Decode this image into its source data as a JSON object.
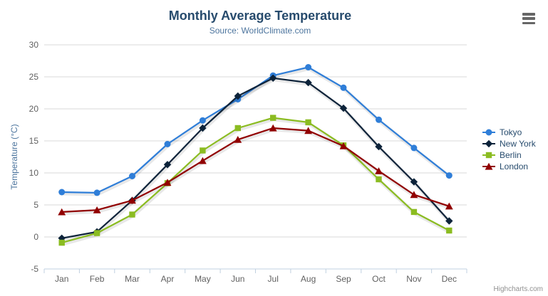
{
  "chart": {
    "title": "Monthly Average Temperature",
    "subtitle": "Source: WorldClimate.com",
    "credits": "Highcharts.com"
  },
  "icons": {
    "context_menu": "hamburger-icon"
  },
  "colors": {
    "title_text": "#274b6d",
    "subtitle_text": "#4d759e",
    "axis_title_text": "#4d759e",
    "tick_label_text": "#606060",
    "grid_line": "#d8d8d8",
    "axis_line": "#c0d0e0",
    "legend_text": "#274b6d",
    "credits_text": "#909090",
    "menu_icon": "#666666"
  },
  "chart_data": {
    "type": "line",
    "title": "Monthly Average Temperature",
    "subtitle": "Source: WorldClimate.com",
    "categories": [
      "Jan",
      "Feb",
      "Mar",
      "Apr",
      "May",
      "Jun",
      "Jul",
      "Aug",
      "Sep",
      "Oct",
      "Nov",
      "Dec"
    ],
    "series": [
      {
        "name": "Tokyo",
        "color": "#2f7ed8",
        "marker": "circle",
        "values": [
          7.0,
          6.9,
          9.5,
          14.5,
          18.2,
          21.5,
          25.2,
          26.5,
          23.3,
          18.3,
          13.9,
          9.6
        ]
      },
      {
        "name": "New York",
        "color": "#0d233a",
        "marker": "diamond",
        "values": [
          -0.2,
          0.8,
          5.7,
          11.3,
          17.0,
          22.0,
          24.8,
          24.1,
          20.1,
          14.1,
          8.6,
          2.5
        ]
      },
      {
        "name": "Berlin",
        "color": "#8bbc21",
        "marker": "square",
        "values": [
          -0.9,
          0.6,
          3.5,
          8.4,
          13.5,
          17.0,
          18.6,
          17.9,
          14.3,
          9.0,
          3.9,
          1.0
        ]
      },
      {
        "name": "London",
        "color": "#910000",
        "marker": "triangle",
        "values": [
          3.9,
          4.2,
          5.7,
          8.5,
          11.9,
          15.2,
          17.0,
          16.6,
          14.2,
          10.3,
          6.6,
          4.8
        ]
      }
    ],
    "xlabel": "",
    "ylabel": "Temperature (°C)",
    "ylim": [
      -5,
      30
    ],
    "ytick_step": 5,
    "grid": true,
    "legend_position": "right"
  }
}
